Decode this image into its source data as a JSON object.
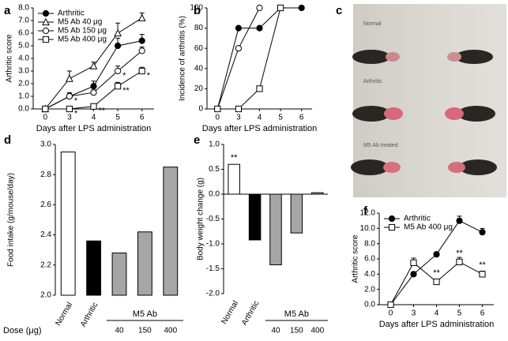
{
  "chart_data": [
    {
      "type": "line",
      "panel": "a",
      "ylabel": "Arthritic score",
      "xlabel": "Days after LPS administration",
      "categories": [
        "0",
        "3",
        "4",
        "5",
        "6"
      ],
      "ylim": [
        0,
        8
      ],
      "yticks": [
        {
          "value": 0,
          "label": "0.0"
        },
        {
          "value": 1,
          "label": "1.0"
        },
        {
          "value": 2,
          "label": "2.0"
        },
        {
          "value": 3,
          "label": "3.0"
        },
        {
          "value": 4,
          "label": "4.0"
        },
        {
          "value": 5,
          "label": "5.0"
        },
        {
          "value": 6,
          "label": "6.0"
        },
        {
          "value": 7,
          "label": "7.0"
        },
        {
          "value": 8,
          "label": "8.0"
        }
      ],
      "legend": "upper left",
      "significance_position": "right",
      "series": [
        {
          "name": "Arthritic",
          "marker": "filled-circle",
          "color": "#000000",
          "values": [
            0,
            1.0,
            1.8,
            5.0,
            5.4
          ],
          "errors": [
            0,
            0.3,
            0.4,
            0.6,
            0.5
          ]
        },
        {
          "name": "M5 Ab 40 μg",
          "marker": "triangle",
          "color": "#000000",
          "values": [
            0,
            2.4,
            3.4,
            6.0,
            7.2
          ],
          "errors": [
            0,
            0.6,
            0.3,
            0.8,
            0.4
          ]
        },
        {
          "name": "M5 Ab 150 μg",
          "marker": "open-circle",
          "color": "#000000",
          "values": [
            0,
            1.0,
            1.3,
            3.0,
            4.6
          ],
          "errors": [
            0,
            0.2,
            0.2,
            0.4,
            0.3
          ],
          "significance": [
            null,
            "*",
            null,
            "*",
            null
          ]
        },
        {
          "name": "M5 Ab 400 μg",
          "marker": "square",
          "color": "#000000",
          "values": [
            0,
            0,
            0.2,
            1.8,
            3.0
          ],
          "errors": [
            0,
            0,
            0.1,
            0.3,
            0.3
          ],
          "significance": [
            null,
            "*",
            "**",
            "**",
            "*"
          ]
        }
      ]
    },
    {
      "type": "line",
      "panel": "b",
      "ylabel": "Incidence of arthritis (%)",
      "xlabel": "Days after LPS administration",
      "categories": [
        "0",
        "3",
        "4",
        "5",
        "6"
      ],
      "ylim": [
        0,
        100
      ],
      "yticks": [
        0,
        20,
        40,
        60,
        80,
        100
      ],
      "series": [
        {
          "marker": "filled-circle",
          "color": "#000000",
          "values": [
            0,
            80,
            80,
            100,
            100
          ]
        },
        {
          "marker": "open-circle",
          "color": "#000000",
          "values": [
            0,
            60,
            100,
            null,
            null
          ]
        },
        {
          "marker": "square",
          "color": "#000000",
          "values": [
            0,
            0,
            20,
            100,
            null
          ]
        }
      ]
    },
    {
      "type": "bar",
      "panel": "d",
      "ylabel": "Food intake (g/mouse/day)",
      "group_label": "M5 Ab",
      "dose_label": "Dose (μg)",
      "categories": [
        "Normal",
        "Arthritic",
        "40",
        "150",
        "400"
      ],
      "values": [
        2.95,
        2.36,
        2.28,
        2.42,
        2.85
      ],
      "colors": [
        "#ffffff",
        "#000000",
        "#a6a6a6",
        "#a6a6a6",
        "#a6a6a6"
      ],
      "ylim": [
        2.0,
        3.0
      ],
      "yticks": [
        {
          "value": 2,
          "label": "2.0"
        },
        2.2,
        2.4,
        2.6,
        2.8,
        {
          "value": 3,
          "label": "3.0"
        }
      ]
    },
    {
      "type": "bar",
      "panel": "e",
      "ylabel": "Body weight change (g)",
      "group_label": "M5 Ab",
      "categories": [
        "Normal",
        "Arthritic",
        "40",
        "150",
        "400"
      ],
      "values": [
        0.6,
        -0.92,
        -1.42,
        -0.78,
        0.03
      ],
      "significance": [
        "**",
        null,
        null,
        null,
        null
      ],
      "colors": [
        "#ffffff",
        "#000000",
        "#a6a6a6",
        "#a6a6a6",
        "#a6a6a6"
      ],
      "ylim": [
        -2.0,
        1.0
      ],
      "yticks": [
        {
          "value": -2,
          "label": "-2.0"
        },
        -1.5,
        {
          "value": -1,
          "label": "-1.0"
        },
        -0.5,
        {
          "value": 0,
          "label": "0.0"
        },
        0.5,
        {
          "value": 1,
          "label": "1.0"
        }
      ]
    },
    {
      "type": "line",
      "panel": "f",
      "ylabel": "Arthritic score",
      "xlabel": "Days after LPS administration",
      "categories": [
        "0",
        "3",
        "4",
        "5",
        "6"
      ],
      "ylim": [
        0,
        12
      ],
      "yticks": [
        {
          "value": 0,
          "label": "0.0"
        },
        {
          "value": 2,
          "label": "2.0"
        },
        {
          "value": 4,
          "label": "4.0"
        },
        {
          "value": 6,
          "label": "6.0"
        },
        {
          "value": 8,
          "label": "8.0"
        },
        {
          "value": 10,
          "label": "10.0"
        },
        {
          "value": 12,
          "label": "12.0"
        }
      ],
      "legend": "upper left",
      "significance_position": "above",
      "series": [
        {
          "name": "Arthritic",
          "marker": "filled-circle",
          "color": "#000000",
          "values": [
            0,
            4.0,
            6.6,
            11.0,
            9.5
          ],
          "errors": [
            0,
            0.3,
            0.3,
            0.6,
            0.5
          ]
        },
        {
          "name": "M5 Ab 400 μg",
          "marker": "square",
          "color": "#000000",
          "values": [
            0,
            5.5,
            3.0,
            5.6,
            4.0
          ],
          "errors": [
            0,
            0.6,
            0.2,
            0.6,
            0.4
          ],
          "significance": [
            null,
            null,
            "**",
            "**",
            "**"
          ]
        }
      ]
    }
  ],
  "photo": {
    "panel": "c",
    "labels": [
      "Normal",
      "Arthritic",
      "M5 Ab treated"
    ]
  }
}
